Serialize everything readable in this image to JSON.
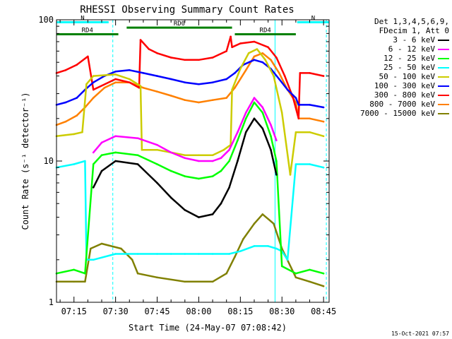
{
  "chart_data": {
    "type": "line",
    "title": "RHESSI Observing Summary Count Rates",
    "xlabel": "Start Time (24-May-07 07:08:42)",
    "ylabel": "Count Rate (s⁻¹ detector⁻¹)",
    "y_scale": "log",
    "ylim": [
      1,
      100
    ],
    "xlim": [
      "07:08:42",
      "08:47:00"
    ],
    "x_ticks": [
      "07:15",
      "07:30",
      "07:45",
      "08:00",
      "08:15",
      "08:30",
      "08:45"
    ],
    "y_ticks": [
      "1",
      "10",
      "100"
    ],
    "grid": false,
    "legend_header": [
      "Det 1,3,4,5,6,9,",
      "FDecim 1, Att 0"
    ],
    "legend_placement": "right, outside plot",
    "series": [
      {
        "name": "3 - 6 keV",
        "color": "#000000",
        "x": [
          "07:08:42",
          "07:19:00",
          "07:22:00",
          "07:25:00",
          "07:30:00",
          "07:38:00",
          "07:45:00",
          "07:50:00",
          "07:55:00",
          "08:00:00",
          "08:05:00",
          "08:08:00",
          "08:11:00",
          "08:14:00",
          "08:17:00",
          "08:20:00",
          "08:23:00",
          "08:26:00",
          "08:28:00",
          "08:30:00"
        ],
        "y": [
          null,
          null,
          6.5,
          8.5,
          10,
          9.5,
          7,
          5.5,
          4.5,
          4,
          4.2,
          5,
          6.5,
          10,
          16,
          20,
          17,
          12,
          8,
          null
        ]
      },
      {
        "name": "6 - 12 keV",
        "color": "#ff00ff",
        "x": [
          "07:08:42",
          "07:19:00",
          "07:22:00",
          "07:25:00",
          "07:30:00",
          "07:38:00",
          "07:45:00",
          "07:50:00",
          "07:55:00",
          "08:00:00",
          "08:05:00",
          "08:08:00",
          "08:11:00",
          "08:14:00",
          "08:17:00",
          "08:20:00",
          "08:23:00",
          "08:26:00",
          "08:28:00",
          "08:30:00"
        ],
        "y": [
          null,
          null,
          11.5,
          13.5,
          15,
          14.5,
          13,
          11.5,
          10.5,
          10,
          10,
          10.5,
          12,
          16,
          22,
          28,
          24,
          18,
          14,
          null
        ]
      },
      {
        "name": "12 - 25 keV",
        "color": "#00ff00",
        "x": [
          "07:08:42",
          "07:15:00",
          "07:19:00",
          "07:22:00",
          "07:25:00",
          "07:30:00",
          "07:38:00",
          "07:45:00",
          "07:50:00",
          "07:55:00",
          "08:00:00",
          "08:05:00",
          "08:08:00",
          "08:11:00",
          "08:14:00",
          "08:17:00",
          "08:20:00",
          "08:23:00",
          "08:26:00",
          "08:28:00",
          "08:30:00",
          "08:35:00",
          "08:40:00",
          "08:45:00"
        ],
        "y": [
          1.6,
          1.7,
          1.6,
          9.5,
          11,
          11.5,
          11,
          9.5,
          8.5,
          7.8,
          7.5,
          7.8,
          8.5,
          10,
          14,
          20,
          26,
          22,
          15,
          10,
          1.8,
          1.6,
          1.7,
          1.6
        ]
      },
      {
        "name": "25 - 50 keV",
        "color": "#00ffff",
        "x": [
          "07:08:42",
          "07:15:00",
          "07:19:00",
          "07:19:30",
          "07:22:00",
          "07:30:00",
          "07:38:00",
          "07:45:00",
          "07:50:00",
          "07:55:00",
          "08:00:00",
          "08:05:00",
          "08:11:00",
          "08:15:00",
          "08:20:00",
          "08:25:00",
          "08:28:00",
          "08:30:00",
          "08:32:00",
          "08:35:00",
          "08:40:00",
          "08:45:00"
        ],
        "y": [
          9,
          9.5,
          10,
          2,
          2,
          2.2,
          2.2,
          2.2,
          2.2,
          2.2,
          2.2,
          2.2,
          2.2,
          2.3,
          2.5,
          2.5,
          2.4,
          2.3,
          2,
          9.5,
          9.5,
          9
        ]
      },
      {
        "name": "50 - 100 keV",
        "color": "#cccc00",
        "x": [
          "07:08:42",
          "07:15:00",
          "07:18:00",
          "07:19:30",
          "07:22:00",
          "07:30:00",
          "07:35:00",
          "07:39:00",
          "07:39:30",
          "07:45:00",
          "07:50:00",
          "07:55:00",
          "08:00:00",
          "08:05:00",
          "08:09:00",
          "08:11:30",
          "08:12:00",
          "08:15:00",
          "08:18:00",
          "08:21:00",
          "08:24:00",
          "08:27:00",
          "08:30:00",
          "08:33:00",
          "08:35:00",
          "08:40:00",
          "08:45:00"
        ],
        "y": [
          15,
          15.5,
          16,
          35,
          40,
          41,
          38,
          34,
          12,
          12,
          11.5,
          11,
          11,
          11,
          12,
          13,
          32,
          45,
          58,
          62,
          52,
          40,
          22,
          8,
          16,
          16,
          15
        ]
      },
      {
        "name": "100 - 300 keV",
        "color": "#0000ff",
        "x": [
          "07:08:42",
          "07:12:00",
          "07:16:00",
          "07:19:00",
          "07:22:00",
          "07:26:00",
          "07:30:00",
          "07:35:00",
          "07:40:00",
          "07:45:00",
          "07:50:00",
          "07:55:00",
          "08:00:00",
          "08:05:00",
          "08:10:00",
          "08:13:00",
          "08:16:00",
          "08:20:00",
          "08:23:00",
          "08:26:00",
          "08:29:00",
          "08:32:00",
          "08:35:00",
          "08:36:00",
          "08:40:00",
          "08:45:00"
        ],
        "y": [
          25,
          26,
          28,
          32,
          36,
          40,
          43,
          44,
          42,
          40,
          38,
          36,
          35,
          36,
          38,
          42,
          48,
          52,
          50,
          45,
          38,
          32,
          28,
          25,
          25,
          24
        ]
      },
      {
        "name": "300 - 800 keV",
        "color": "#ff0000",
        "x": [
          "07:08:42",
          "07:12:00",
          "07:16:00",
          "07:20:00",
          "07:22:00",
          "07:30:00",
          "07:35:00",
          "07:38:30",
          "07:39:00",
          "07:42:00",
          "07:45:00",
          "07:50:00",
          "07:55:00",
          "08:00:00",
          "08:05:00",
          "08:10:00",
          "08:11:30",
          "08:12:00",
          "08:15:00",
          "08:20:00",
          "08:25:00",
          "08:28:00",
          "08:31:00",
          "08:34:00",
          "08:36:00",
          "08:36:30",
          "08:40:00",
          "08:45:00"
        ],
        "y": [
          42,
          44,
          48,
          55,
          32,
          38,
          36,
          33,
          72,
          62,
          58,
          54,
          52,
          52,
          54,
          60,
          76,
          64,
          68,
          70,
          64,
          54,
          40,
          28,
          20,
          42,
          42,
          40
        ]
      },
      {
        "name": "800 - 7000 keV",
        "color": "#ff8000",
        "x": [
          "07:08:42",
          "07:12:00",
          "07:16:00",
          "07:19:00",
          "07:22:00",
          "07:26:00",
          "07:30:00",
          "07:35:00",
          "07:40:00",
          "07:45:00",
          "07:50:00",
          "07:55:00",
          "08:00:00",
          "08:05:00",
          "08:10:00",
          "08:13:00",
          "08:17:00",
          "08:20:00",
          "08:23:00",
          "08:26:00",
          "08:29:00",
          "08:32:00",
          "08:35:00",
          "08:36:00",
          "08:40:00",
          "08:45:00"
        ],
        "y": [
          18,
          19,
          21,
          24,
          28,
          33,
          36,
          36,
          33,
          31,
          29,
          27,
          26,
          27,
          28,
          33,
          44,
          55,
          58,
          52,
          42,
          32,
          26,
          20,
          20,
          19
        ]
      },
      {
        "name": "7000 - 15000 keV",
        "color": "#808000",
        "x": [
          "07:08:42",
          "07:15:00",
          "07:19:00",
          "07:21:00",
          "07:25:00",
          "07:32:00",
          "07:36:00",
          "07:38:00",
          "07:45:00",
          "07:55:00",
          "08:05:00",
          "08:10:00",
          "08:13:00",
          "08:16:00",
          "08:20:00",
          "08:23:00",
          "08:27:00",
          "08:30:00",
          "08:35:00",
          "08:40:00",
          "08:45:00"
        ],
        "y": [
          1.4,
          1.4,
          1.4,
          2.4,
          2.6,
          2.4,
          2,
          1.6,
          1.5,
          1.4,
          1.4,
          1.6,
          2.1,
          2.8,
          3.6,
          4.2,
          3.6,
          2.4,
          1.5,
          1.4,
          1.3
        ]
      }
    ],
    "annotations": [
      {
        "label": "N",
        "color": "#00ffff",
        "x": [
          "07:08:42",
          "07:27:30"
        ],
        "level": 96
      },
      {
        "label": "N",
        "color": "#00ffff",
        "x": [
          "08:35:30",
          "08:47:00"
        ],
        "level": 96
      },
      {
        "label": "RD0",
        "color": "#008000",
        "x": [
          "07:34:00",
          "08:12:00"
        ],
        "level": 88
      },
      {
        "label": "RD4",
        "color": "#008000",
        "x": [
          "07:08:42",
          "07:31:00"
        ],
        "level": 79
      },
      {
        "label": "RD4",
        "color": "#008000",
        "x": [
          "08:13:00",
          "08:35:00"
        ],
        "level": 79
      }
    ],
    "vertical_lines": [
      {
        "x": "07:08:42",
        "color": "#00ffff",
        "style": "solid"
      },
      {
        "x": "07:29:00",
        "color": "#00ffff",
        "style": "dashed"
      },
      {
        "x": "08:27:30",
        "color": "#00ffff",
        "style": "solid"
      },
      {
        "x": "08:46:00",
        "color": "#00ffff",
        "style": "dashed"
      }
    ]
  },
  "footer": {
    "timestamp": "15-Oct-2021 07:57"
  }
}
